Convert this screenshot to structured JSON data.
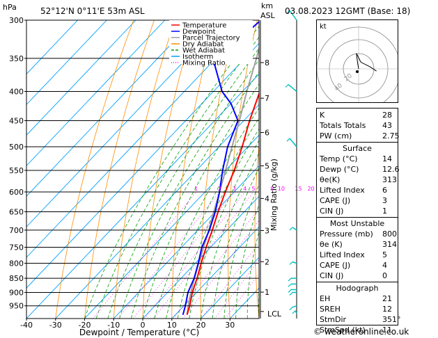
{
  "header": {
    "left_unit": "hPa",
    "location": "52°12'N  0°11'E  53m  ASL",
    "km_label": "km",
    "asl_label": "ASL",
    "datetime": "03.08.2023  12GMT  (Base: 18)"
  },
  "legend": [
    "Temperature",
    "Dewpoint",
    "Parcel Trajectory",
    "Dry Adiabat",
    "Wet Adiabat",
    "Isotherm",
    "Mixing Ratio"
  ],
  "colors": {
    "temperature": "#ff0000",
    "dewpoint": "#0000ff",
    "parcel": "#a0a0a0",
    "dry_adiabat": "#ff8c00",
    "wet_adiabat": "#00a000",
    "isotherm": "#00a0ff",
    "mixing_ratio": "#ff00ff",
    "wind": "#00c0c0"
  },
  "chart_data": {
    "type": "skew-t",
    "xlabel": "Dewpoint / Temperature (°C)",
    "ylabel_right": "Mixing Ratio (g/kg)",
    "xlim": [
      -40,
      40
    ],
    "x_ticks": [
      "-40",
      "-30",
      "-20",
      "-10",
      "0",
      "10",
      "20",
      "30"
    ],
    "p_ticks": [
      300,
      350,
      400,
      450,
      500,
      550,
      600,
      650,
      700,
      750,
      800,
      850,
      900,
      950
    ],
    "km_ticks": [
      {
        "km": "8",
        "p": 356
      },
      {
        "km": "7",
        "p": 411
      },
      {
        "km": "6",
        "p": 472
      },
      {
        "km": "5",
        "p": 540
      },
      {
        "km": "4",
        "p": 616
      },
      {
        "km": "3",
        "p": 701
      },
      {
        "km": "2",
        "p": 795
      },
      {
        "km": "1",
        "p": 899
      }
    ],
    "lcl": {
      "label": "LCL",
      "p": 972
    },
    "mixing_ratio_labels": [
      "1",
      "2",
      "3",
      "4",
      "5",
      "8",
      "10",
      "15",
      "20",
      "25"
    ],
    "temperature": [
      {
        "p": 985,
        "t": 14
      },
      {
        "p": 950,
        "t": 12
      },
      {
        "p": 900,
        "t": 8.5
      },
      {
        "p": 850,
        "t": 5.5
      },
      {
        "p": 800,
        "t": 2
      },
      {
        "p": 750,
        "t": -1.5
      },
      {
        "p": 700,
        "t": -5
      },
      {
        "p": 650,
        "t": -9
      },
      {
        "p": 600,
        "t": -13
      },
      {
        "p": 550,
        "t": -17
      },
      {
        "p": 500,
        "t": -22
      },
      {
        "p": 450,
        "t": -28
      },
      {
        "p": 400,
        "t": -34
      },
      {
        "p": 350,
        "t": -41
      },
      {
        "p": 300,
        "t": -49
      }
    ],
    "dewpoint": [
      {
        "p": 985,
        "t": 12.6
      },
      {
        "p": 950,
        "t": 10.5
      },
      {
        "p": 900,
        "t": 7
      },
      {
        "p": 850,
        "t": 4.5
      },
      {
        "p": 800,
        "t": 1
      },
      {
        "p": 750,
        "t": -3
      },
      {
        "p": 700,
        "t": -6
      },
      {
        "p": 650,
        "t": -10
      },
      {
        "p": 600,
        "t": -15
      },
      {
        "p": 550,
        "t": -21
      },
      {
        "p": 500,
        "t": -27
      },
      {
        "p": 450,
        "t": -32
      },
      {
        "p": 420,
        "t": -40
      },
      {
        "p": 400,
        "t": -47
      },
      {
        "p": 350,
        "t": -61
      },
      {
        "p": 320,
        "t": -58
      },
      {
        "p": 300,
        "t": -57
      }
    ],
    "parcel": [
      {
        "p": 985,
        "t": 14
      },
      {
        "p": 950,
        "t": 11.5
      },
      {
        "p": 900,
        "t": 8
      },
      {
        "p": 850,
        "t": 4.6
      },
      {
        "p": 800,
        "t": 1.2
      },
      {
        "p": 750,
        "t": -2.4
      },
      {
        "p": 700,
        "t": -6.2
      },
      {
        "p": 650,
        "t": -10.5
      },
      {
        "p": 600,
        "t": -15
      },
      {
        "p": 550,
        "t": -20
      },
      {
        "p": 500,
        "t": -25.5
      },
      {
        "p": 450,
        "t": -31.5
      },
      {
        "p": 400,
        "t": -38.5
      },
      {
        "p": 350,
        "t": -46
      },
      {
        "p": 300,
        "t": -55
      }
    ]
  },
  "hodograph": {
    "unit": "kt",
    "ring_labels": [
      "20",
      "40"
    ],
    "points": [
      {
        "x": 0,
        "y": 0
      },
      {
        "x": -1,
        "y": -6
      },
      {
        "x": -2,
        "y": -14
      },
      {
        "x": 2,
        "y": -6
      },
      {
        "x": 10,
        "y": -2
      },
      {
        "x": 16,
        "y": 2
      }
    ]
  },
  "indices": [
    {
      "key": "K",
      "value": "28"
    },
    {
      "key": "Totals Totals",
      "value": "43"
    },
    {
      "key": "PW (cm)",
      "value": "2.75"
    }
  ],
  "surface": {
    "title": "Surface",
    "rows": [
      {
        "key": "Temp (°C)",
        "value": "14"
      },
      {
        "key": "Dewp (°C)",
        "value": "12.6"
      },
      {
        "key": "θe(K)",
        "value": "313"
      },
      {
        "key": "Lifted Index",
        "value": "6"
      },
      {
        "key": "CAPE (J)",
        "value": "3"
      },
      {
        "key": "CIN (J)",
        "value": "1"
      }
    ]
  },
  "most_unstable": {
    "title": "Most Unstable",
    "rows": [
      {
        "key": "Pressure (mb)",
        "value": "800"
      },
      {
        "key": "θe (K)",
        "value": "314"
      },
      {
        "key": "Lifted Index",
        "value": "5"
      },
      {
        "key": "CAPE (J)",
        "value": "4"
      },
      {
        "key": "CIN (J)",
        "value": "0"
      }
    ]
  },
  "hodograph_table": {
    "title": "Hodograph",
    "rows": [
      {
        "key": "EH",
        "value": "21"
      },
      {
        "key": "SREH",
        "value": "12"
      },
      {
        "key": "StmDir",
        "value": "351°"
      },
      {
        "key": "StmSpd (kt)",
        "value": "11"
      }
    ]
  },
  "copyright": "© weatheronline.co.uk"
}
